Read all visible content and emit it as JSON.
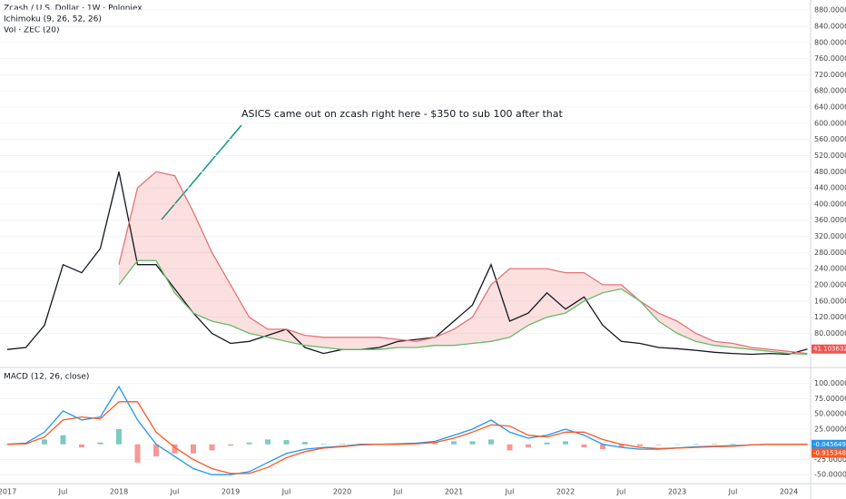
{
  "chart_data": [
    {
      "type": "line",
      "title": "Zcash / U.S. Dollar · 1W · Poloniex",
      "indicators": [
        "Ichimoku (9, 26, 52, 26)",
        "Vol · ZEC (20)"
      ],
      "annotation": "ASICS came out on zcash right here - $350 to sub 100 after that",
      "ylim": [
        0,
        905
      ],
      "yticks": [
        {
          "value": 80,
          "label": "80.000000"
        },
        {
          "value": 120,
          "label": "120.000000"
        },
        {
          "value": 160,
          "label": "160.000000"
        },
        {
          "value": 200,
          "label": "200.000000"
        },
        {
          "value": 240,
          "label": "240.000000"
        },
        {
          "value": 280,
          "label": "280.000000"
        },
        {
          "value": 320,
          "label": "320.000000"
        },
        {
          "value": 360,
          "label": "360.000000"
        },
        {
          "value": 400,
          "label": "400.000000"
        },
        {
          "value": 440,
          "label": "440.000000"
        },
        {
          "value": 480,
          "label": "480.000000"
        },
        {
          "value": 520,
          "label": "520.000000"
        },
        {
          "value": 560,
          "label": "560.000000"
        },
        {
          "value": 600,
          "label": "600.000000"
        },
        {
          "value": 640,
          "label": "640.000000"
        },
        {
          "value": 680,
          "label": "680.000000"
        },
        {
          "value": 720,
          "label": "720.000000"
        },
        {
          "value": 760,
          "label": "760.000000"
        },
        {
          "value": 800,
          "label": "800.000000"
        },
        {
          "value": 840,
          "label": "840.000000"
        },
        {
          "value": 880,
          "label": "880.000000"
        }
      ],
      "last_value": {
        "value": 41.103632,
        "label": "41.103632",
        "color": "#ef5350"
      },
      "series": [
        {
          "color": "#131722",
          "values": [
            40,
            45,
            100,
            250,
            230,
            290,
            480,
            250,
            250,
            190,
            130,
            80,
            55,
            60,
            75,
            90,
            45,
            30,
            40,
            40,
            45,
            60,
            65,
            70,
            110,
            150,
            250,
            110,
            130,
            180,
            140,
            170,
            100,
            60,
            55,
            45,
            42,
            38,
            33,
            30,
            28,
            30,
            28,
            41
          ]
        },
        {
          "color": "#e57373",
          "values": [
            null,
            null,
            null,
            null,
            null,
            null,
            250,
            440,
            480,
            470,
            380,
            280,
            200,
            120,
            90,
            90,
            75,
            70,
            70,
            70,
            70,
            65,
            60,
            70,
            90,
            120,
            200,
            240,
            240,
            240,
            230,
            230,
            200,
            200,
            160,
            130,
            110,
            80,
            60,
            55,
            45,
            40,
            35,
            30
          ]
        },
        {
          "color": "#66bb6a",
          "values": [
            null,
            null,
            null,
            null,
            null,
            null,
            200,
            260,
            260,
            180,
            130,
            110,
            100,
            80,
            70,
            60,
            50,
            45,
            40,
            40,
            40,
            45,
            45,
            50,
            50,
            55,
            60,
            70,
            100,
            120,
            130,
            160,
            180,
            190,
            160,
            110,
            80,
            60,
            50,
            45,
            40,
            35,
            30,
            28
          ]
        }
      ]
    },
    {
      "type": "line",
      "title": "MACD (12, 26, close)",
      "categories": [
        "2017",
        null,
        null,
        "Jul",
        null,
        null,
        "2018",
        null,
        null,
        "Jul",
        null,
        null,
        "2019",
        null,
        null,
        "Jul",
        null,
        null,
        "2020",
        null,
        null,
        "Jul",
        null,
        null,
        "2021",
        null,
        null,
        "Jul",
        null,
        null,
        "2022",
        null,
        null,
        "Jul",
        null,
        null,
        "2023",
        null,
        null,
        "Jul",
        null,
        null,
        "2024",
        null
      ],
      "ylim": [
        -75,
        119
      ],
      "yticks": [
        {
          "value": 100,
          "label": "100.000000"
        },
        {
          "value": 75,
          "label": "75.000000"
        },
        {
          "value": 50,
          "label": "50.000000"
        },
        {
          "value": 25,
          "label": "25.000000"
        },
        {
          "value": -25,
          "label": "-25.000000"
        },
        {
          "value": -50,
          "label": "-50.000000"
        }
      ],
      "last_labels": [
        {
          "value": -0.045649,
          "label": "-0.045649",
          "color": "#2196f3"
        },
        {
          "value": -0.915348,
          "label": "-0.915348",
          "color": "#ff5722"
        }
      ],
      "histogram": {
        "color_up": "#26a69a",
        "color_down": "#ef5350",
        "values": [
          0,
          1,
          8,
          15,
          -5,
          3,
          25,
          -30,
          -20,
          -15,
          -15,
          -10,
          -2,
          3,
          8,
          7,
          4,
          1,
          1,
          1,
          0,
          1,
          1,
          2,
          5,
          5,
          8,
          -10,
          -5,
          3,
          5,
          -5,
          -8,
          -5,
          -3,
          -1,
          0,
          1,
          1,
          1,
          0,
          0,
          0,
          0
        ]
      },
      "series": [
        {
          "color": "#2196f3",
          "values": [
            0,
            2,
            20,
            55,
            40,
            45,
            95,
            40,
            0,
            -20,
            -40,
            -50,
            -50,
            -45,
            -30,
            -15,
            -8,
            -5,
            -3,
            0,
            0,
            1,
            2,
            5,
            15,
            25,
            40,
            20,
            10,
            15,
            25,
            15,
            0,
            -5,
            -8,
            -8,
            -6,
            -4,
            -3,
            -2,
            -1,
            0,
            0,
            0
          ]
        },
        {
          "color": "#ff5722",
          "values": [
            0,
            1,
            12,
            40,
            45,
            42,
            70,
            70,
            20,
            -5,
            -25,
            -40,
            -48,
            -48,
            -38,
            -22,
            -12,
            -6,
            -4,
            -1,
            0,
            0,
            1,
            3,
            10,
            20,
            32,
            30,
            15,
            12,
            20,
            20,
            8,
            0,
            -5,
            -7,
            -6,
            -5,
            -4,
            -3,
            -1,
            0,
            0,
            0
          ]
        }
      ]
    }
  ]
}
